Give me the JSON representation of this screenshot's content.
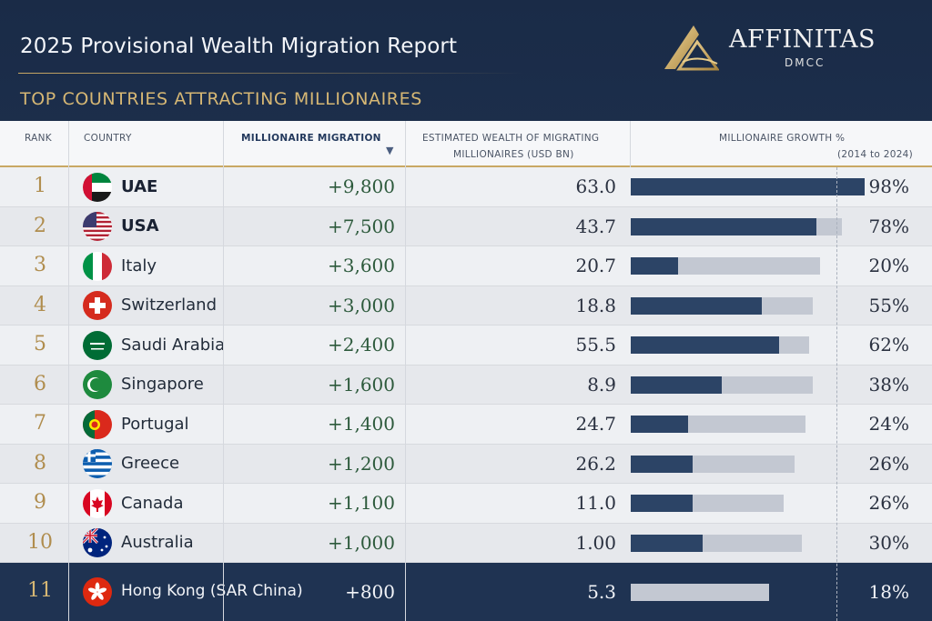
{
  "header": {
    "title": "2025 Provisional Wealth Migration Report",
    "subtitle": "TOP COUNTRIES ATTRACTING MILLIONAIRES",
    "logo_name": "AFFINITAS",
    "logo_sub": "DMCC"
  },
  "columns": {
    "rank": "RANK",
    "country": "COUNTRY",
    "migration": "MILLIONAIRE MIGRATION",
    "wealth_line1": "ESTIMATED WEALTH OF MIGRATING",
    "wealth_line2": "MILLIONAIRES (USD BN)",
    "growth_line1": "MILLIONAIRE GROWTH %",
    "growth_line2": "(2014 to 2024)"
  },
  "colors": {
    "navy": "#1f3352",
    "gold": "#c9a864",
    "bar": "#2c4466",
    "bar_track": "#c3c8d2",
    "green_text": "#2d5a3c"
  },
  "chart_data": {
    "type": "table",
    "title": "2025 Provisional Wealth Migration Report",
    "subtitle": "TOP COUNTRIES ATTRACTING MILLIONAIRES",
    "rows": [
      {
        "rank": "1",
        "country": "UAE",
        "flag": "uae-flag-icon",
        "migration": "+9,800",
        "wealth": "63.0",
        "growth": 98,
        "growth_label": "98%",
        "track_end": 0.62,
        "bold": true
      },
      {
        "rank": "2",
        "country": "USA",
        "flag": "usa-flag-icon",
        "migration": "+7,500",
        "wealth": "43.7",
        "growth": 78,
        "growth_label": "78%",
        "track_end": 0.58,
        "bold": true
      },
      {
        "rank": "3",
        "country": "Italy",
        "flag": "italy-flag-icon",
        "migration": "+3,600",
        "wealth": "20.7",
        "growth": 20,
        "growth_label": "20%",
        "track_end": 0.52
      },
      {
        "rank": "4",
        "country": "Switzerland",
        "flag": "switzerland-flag-icon",
        "migration": "+3,000",
        "wealth": "18.8",
        "growth": 55,
        "growth_label": "55%",
        "track_end": 0.5
      },
      {
        "rank": "5",
        "country": "Saudi Arabia",
        "flag": "saudi-arabia-flag-icon",
        "migration": "+2,400",
        "wealth": "55.5",
        "growth": 62,
        "growth_label": "62%",
        "track_end": 0.49
      },
      {
        "rank": "6",
        "country": "Singapore",
        "flag": "singapore-flag-icon",
        "migration": "+1,600",
        "wealth": "8.9",
        "growth": 38,
        "growth_label": "38%",
        "track_end": 0.5
      },
      {
        "rank": "7",
        "country": "Portugal",
        "flag": "portugal-flag-icon",
        "migration": "+1,400",
        "wealth": "24.7",
        "growth": 24,
        "growth_label": "24%",
        "track_end": 0.48
      },
      {
        "rank": "8",
        "country": "Greece",
        "flag": "greece-flag-icon",
        "migration": "+1,200",
        "wealth": "26.2",
        "growth": 26,
        "growth_label": "26%",
        "track_end": 0.45
      },
      {
        "rank": "9",
        "country": "Canada",
        "flag": "canada-flag-icon",
        "migration": "+1,100",
        "wealth": "11.0",
        "growth": 26,
        "growth_label": "26%",
        "track_end": 0.42
      },
      {
        "rank": "10",
        "country": "Australia",
        "flag": "australia-flag-icon",
        "migration": "+1,000",
        "wealth": "1.00",
        "growth": 30,
        "growth_label": "30%",
        "track_end": 0.47
      },
      {
        "rank": "11",
        "country": "Hong Kong (SAR China)",
        "flag": "hong-kong-flag-icon",
        "migration": "+800",
        "wealth": "5.3",
        "growth": 18,
        "growth_label": "18%",
        "track_end": 0.38,
        "highlight": true
      }
    ]
  }
}
